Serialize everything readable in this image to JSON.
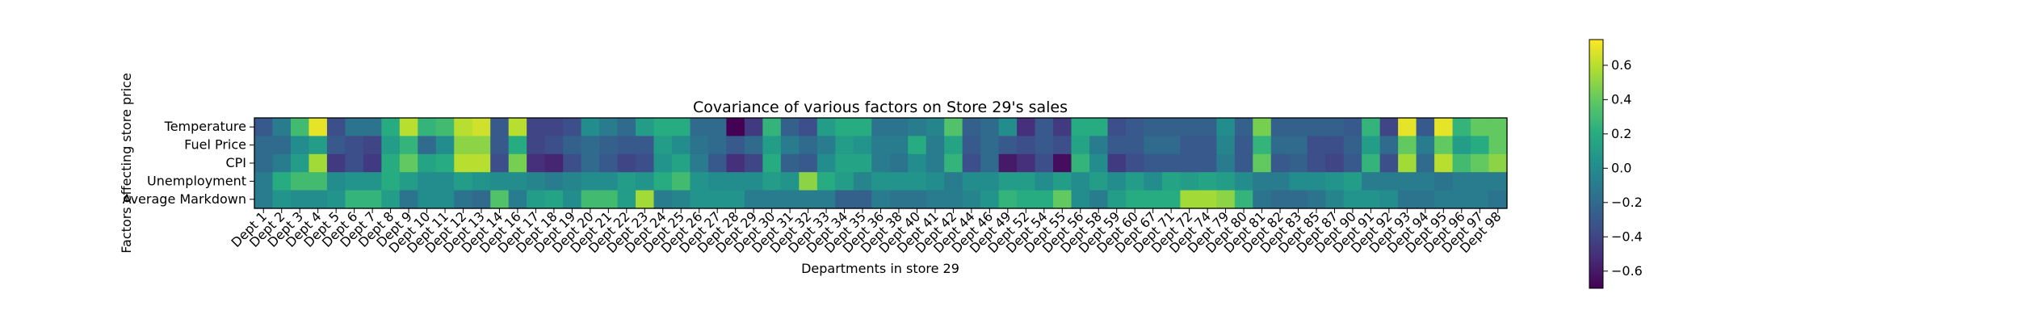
{
  "chart_data": {
    "type": "heatmap",
    "title": "Covariance of various factors on Store 29's sales",
    "xlabel": "Departments in store 29",
    "ylabel": "Factors effecting store price",
    "rows": [
      "Temperature",
      "Fuel Price",
      "CPI",
      "Unemployment",
      "Average Markdown"
    ],
    "columns": [
      "Dept 1",
      "Dept 2",
      "Dept 3",
      "Dept 4",
      "Dept 5",
      "Dept 6",
      "Dept 7",
      "Dept 8",
      "Dept 9",
      "Dept 10",
      "Dept 11",
      "Dept 12",
      "Dept 13",
      "Dept 14",
      "Dept 16",
      "Dept 17",
      "Dept 18",
      "Dept 19",
      "Dept 20",
      "Dept 21",
      "Dept 22",
      "Dept 23",
      "Dept 24",
      "Dept 25",
      "Dept 26",
      "Dept 27",
      "Dept 28",
      "Dept 29",
      "Dept 30",
      "Dept 31",
      "Dept 32",
      "Dept 33",
      "Dept 34",
      "Dept 35",
      "Dept 36",
      "Dept 38",
      "Dept 40",
      "Dept 41",
      "Dept 42",
      "Dept 44",
      "Dept 46",
      "Dept 49",
      "Dept 52",
      "Dept 54",
      "Dept 55",
      "Dept 56",
      "Dept 58",
      "Dept 59",
      "Dept 60",
      "Dept 67",
      "Dept 71",
      "Dept 72",
      "Dept 74",
      "Dept 79",
      "Dept 80",
      "Dept 81",
      "Dept 82",
      "Dept 83",
      "Dept 85",
      "Dept 87",
      "Dept 90",
      "Dept 91",
      "Dept 92",
      "Dept 93",
      "Dept 94",
      "Dept 95",
      "Dept 96",
      "Dept 97",
      "Dept 98"
    ],
    "values": [
      [
        -0.3,
        -0.1,
        0.3,
        0.7,
        -0.35,
        -0.15,
        -0.15,
        0.2,
        0.6,
        0.25,
        0.3,
        0.6,
        0.65,
        -0.3,
        0.6,
        -0.4,
        -0.4,
        -0.35,
        0.0,
        -0.1,
        -0.2,
        0.1,
        0.2,
        0.2,
        -0.2,
        -0.2,
        -0.7,
        -0.45,
        0.25,
        -0.25,
        -0.35,
        0.1,
        0.2,
        0.2,
        -0.15,
        -0.15,
        -0.1,
        -0.05,
        0.35,
        -0.25,
        -0.2,
        0.0,
        -0.5,
        -0.3,
        -0.45,
        0.2,
        0.2,
        -0.35,
        -0.3,
        -0.25,
        -0.25,
        -0.25,
        -0.25,
        0.0,
        -0.25,
        0.45,
        -0.25,
        -0.25,
        -0.25,
        -0.25,
        -0.3,
        0.25,
        -0.4,
        0.7,
        -0.3,
        0.7,
        0.25,
        0.4,
        0.4
      ],
      [
        -0.2,
        -0.2,
        0.0,
        0.1,
        -0.3,
        -0.35,
        -0.4,
        0.1,
        0.25,
        -0.2,
        0.0,
        0.5,
        0.5,
        -0.3,
        0.2,
        -0.4,
        -0.35,
        -0.25,
        -0.2,
        -0.25,
        -0.3,
        -0.3,
        0.1,
        0.0,
        -0.15,
        -0.2,
        -0.3,
        -0.2,
        0.1,
        -0.1,
        -0.2,
        -0.1,
        0.1,
        0.05,
        -0.1,
        -0.1,
        0.2,
        -0.1,
        0.15,
        -0.3,
        -0.2,
        -0.3,
        -0.35,
        -0.3,
        -0.35,
        0.15,
        -0.1,
        -0.3,
        -0.3,
        -0.2,
        -0.2,
        -0.3,
        -0.3,
        -0.05,
        -0.3,
        0.25,
        -0.2,
        -0.2,
        -0.35,
        -0.35,
        -0.25,
        0.1,
        -0.2,
        0.4,
        -0.1,
        0.4,
        0.1,
        0.2,
        0.4
      ],
      [
        -0.2,
        -0.1,
        0.1,
        0.55,
        -0.45,
        -0.35,
        -0.45,
        0.2,
        0.4,
        0.15,
        0.2,
        0.6,
        0.6,
        -0.35,
        0.45,
        -0.5,
        -0.55,
        -0.35,
        -0.2,
        -0.3,
        -0.4,
        -0.35,
        0.05,
        0.15,
        -0.1,
        -0.3,
        -0.5,
        -0.4,
        0.2,
        -0.25,
        -0.3,
        0.0,
        0.15,
        0.15,
        -0.1,
        -0.15,
        0.0,
        -0.1,
        0.25,
        -0.35,
        -0.2,
        -0.6,
        -0.5,
        -0.35,
        -0.65,
        0.25,
        0.0,
        -0.45,
        -0.35,
        -0.3,
        -0.3,
        -0.3,
        -0.3,
        -0.1,
        -0.3,
        0.4,
        -0.3,
        -0.25,
        -0.35,
        -0.4,
        -0.3,
        0.25,
        -0.35,
        0.55,
        -0.2,
        0.6,
        0.3,
        0.4,
        0.5
      ],
      [
        -0.1,
        0.2,
        0.3,
        0.3,
        0.0,
        0.05,
        0.05,
        0.2,
        0.1,
        0.0,
        0.0,
        0.1,
        0.05,
        0.0,
        0.0,
        -0.05,
        -0.1,
        -0.05,
        0.0,
        0.0,
        0.1,
        0.05,
        0.2,
        0.3,
        0.05,
        0.0,
        0.0,
        0.0,
        0.1,
        0.05,
        0.5,
        0.2,
        0.1,
        -0.05,
        0.05,
        0.05,
        0.05,
        0.0,
        -0.1,
        0.0,
        0.0,
        0.1,
        0.1,
        0.0,
        0.1,
        0.0,
        0.1,
        0.0,
        0.1,
        0.0,
        0.15,
        0.1,
        0.15,
        0.1,
        0.0,
        -0.1,
        -0.1,
        0.0,
        0.0,
        0.05,
        0.1,
        -0.1,
        -0.1,
        -0.1,
        -0.1,
        -0.15,
        -0.1,
        -0.1,
        -0.1
      ],
      [
        -0.1,
        0.05,
        0.0,
        0.0,
        0.05,
        0.25,
        0.25,
        0.1,
        -0.15,
        0.0,
        0.0,
        -0.15,
        -0.2,
        0.35,
        -0.1,
        0.1,
        0.15,
        0.0,
        0.3,
        0.3,
        0.1,
        0.55,
        -0.1,
        -0.05,
        0.05,
        0.05,
        0.05,
        -0.1,
        -0.1,
        -0.1,
        -0.1,
        -0.1,
        -0.25,
        -0.25,
        -0.1,
        -0.15,
        -0.15,
        -0.1,
        -0.1,
        -0.05,
        0.05,
        0.25,
        0.2,
        0.2,
        0.4,
        0.0,
        -0.1,
        0.1,
        0.2,
        0.2,
        0.2,
        0.55,
        0.55,
        0.5,
        0.25,
        -0.15,
        -0.2,
        -0.2,
        -0.15,
        -0.05,
        0.05,
        0.05,
        0.0,
        -0.15,
        -0.15,
        -0.1,
        -0.1,
        -0.1,
        -0.15
      ]
    ],
    "colormap": "viridis",
    "colorbar": {
      "vmin": -0.7,
      "vmax": 0.75,
      "ticks": [
        -0.6,
        -0.4,
        -0.2,
        0.0,
        0.2,
        0.4,
        0.6
      ],
      "tick_labels": [
        "−0.6",
        "−0.4",
        "−0.2",
        "0.0",
        "0.2",
        "0.4",
        "0.6"
      ]
    },
    "grid": false
  }
}
